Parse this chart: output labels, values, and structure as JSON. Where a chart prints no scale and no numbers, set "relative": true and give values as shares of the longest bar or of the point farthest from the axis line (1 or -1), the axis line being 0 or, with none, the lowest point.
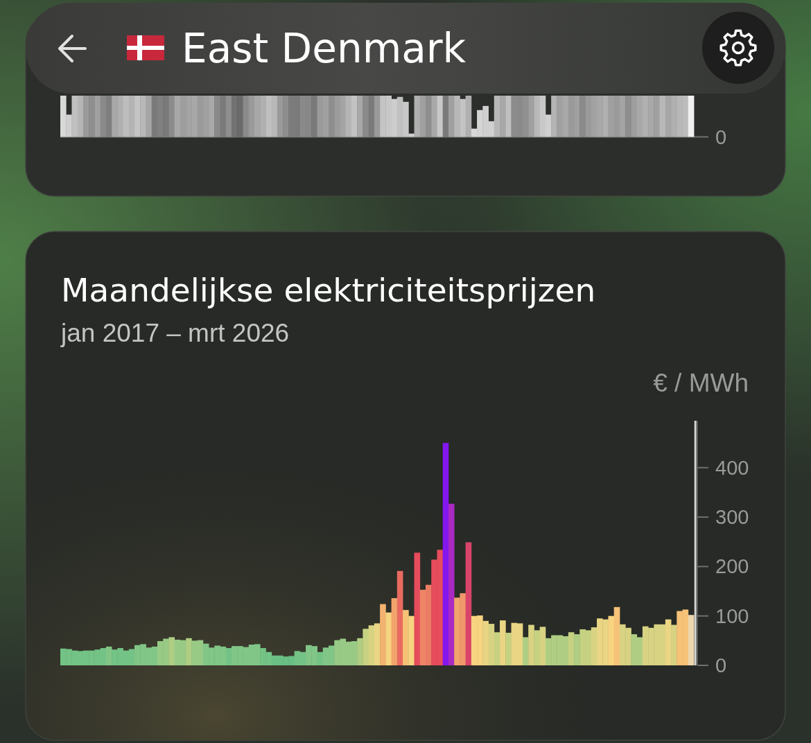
{
  "chart_data": [
    {
      "type": "bar",
      "relative": true,
      "annotations": [
        "East Denmark",
        "0"
      ],
      "categories": [
        null,
        null,
        null,
        null,
        null,
        null,
        null,
        null,
        null,
        null,
        null,
        null,
        null,
        null,
        null,
        null,
        null,
        null,
        null,
        null,
        null,
        null,
        null,
        null,
        null,
        null,
        null,
        null,
        null,
        null,
        null,
        null,
        null,
        null,
        null,
        null,
        null,
        null,
        null,
        null,
        null,
        null,
        null,
        null,
        null,
        null,
        null,
        null,
        null,
        null,
        null,
        null,
        null,
        null,
        null,
        null,
        null,
        null,
        null,
        null,
        null,
        null,
        null,
        null,
        null,
        null,
        null,
        null,
        null,
        null,
        null,
        null,
        null,
        null,
        null,
        null,
        null,
        null,
        null,
        null,
        null,
        null,
        null,
        null,
        null,
        null,
        null,
        null,
        null,
        null,
        null,
        null,
        null,
        null,
        null,
        null,
        null,
        null,
        null,
        null,
        null,
        null,
        null,
        null,
        null,
        null,
        null,
        null,
        null,
        null,
        null
      ],
      "values": [
        1,
        0.54,
        1,
        1,
        1,
        1,
        1,
        1,
        1,
        1,
        1,
        1,
        1,
        1,
        1,
        1,
        1,
        1,
        1,
        1,
        1,
        1,
        1,
        1,
        1,
        1,
        1,
        1,
        1,
        1,
        1,
        1,
        1,
        1,
        1,
        1,
        1,
        1,
        1,
        1,
        1,
        1,
        1,
        1,
        1,
        1,
        1,
        1,
        1,
        1,
        1,
        1,
        1,
        1,
        1,
        1,
        1,
        1,
        0.92,
        0.97,
        0.85,
        0.08,
        1,
        1,
        1,
        1,
        1,
        1,
        1,
        1,
        0.92,
        1,
        0.2,
        0.65,
        0.75,
        0.38,
        1,
        1,
        1,
        1,
        1,
        1,
        1,
        1,
        1,
        0.54,
        1,
        1,
        1,
        1,
        1,
        1,
        1,
        1,
        1,
        1,
        1,
        1,
        1,
        1,
        1,
        1,
        1,
        1,
        1,
        1,
        1,
        1,
        1,
        1,
        1
      ],
      "colors": [
        "#d8d8d8",
        "#cfcfcf",
        "#c0c0c0",
        "#b5b5b5",
        "#9a9a9a",
        "#8f8f8f",
        "#a0a0a0",
        "#8a8a8a",
        "#7e7e7e",
        "#a8a8a8",
        "#b0b0b0",
        "#bdbdbd",
        "#b4b4b4",
        "#c4c4c4",
        "#b8b8b8",
        "#a5a5a5",
        "#7a7a7a",
        "#808080",
        "#7a7a7a",
        "#8c8c8c",
        "#a8a8a8",
        "#9e9e9e",
        "#a4a4a4",
        "#a8a8a8",
        "#9a9a9a",
        "#a0a0a0",
        "#a9a9a9",
        "#8a8a8a",
        "#7a7a7a",
        "#8e8e8e",
        "#727272",
        "#6a6a6a",
        "#8a8a8a",
        "#9a9a9a",
        "#a8a8a8",
        "#b0b0b0",
        "#c0c0c0",
        "#b8b8b8",
        "#9a9a9a",
        "#8e8e8e",
        "#7c7c7c",
        "#7a7a7a",
        "#8a8a8a",
        "#888888",
        "#7a7a7a",
        "#9a9a9a",
        "#a0a0a0",
        "#8e8e8e",
        "#9c9c9c",
        "#a5a5a5",
        "#b5b5b5",
        "#c2c2c2",
        "#a8a8a8",
        "#8a8a8a",
        "#7a7a7a",
        "#9a9a9a",
        "#c4c4c4",
        "#c8c8c8",
        "#cdcdcd",
        "#c0c0c0",
        "#c8c8c8",
        "#d0d0d0",
        "#b0b0b0",
        "#a0a0a0",
        "#8e8e8e",
        "#a8a8a8",
        "#c8c8c8",
        "#7a7a7a",
        "#a0a0a0",
        "#b8b8b8",
        "#c4c4c4",
        "#b0b0b0",
        "#d8d8d8",
        "#d4d4d4",
        "#cfcfcf",
        "#d0d0d0",
        "#b8b8b8",
        "#a8a8a8",
        "#c0c0c0",
        "#8c8c8c",
        "#8a8a8a",
        "#909090",
        "#a0a0a0",
        "#b8b8b8",
        "#c8c8c8",
        "#d0d0d0",
        "#b4b4b4",
        "#a0a0a0",
        "#a8a8a8",
        "#9a9a9a",
        "#a0a0a0",
        "#8a8a8a",
        "#9a9a9a",
        "#a2a2a2",
        "#a8a8a8",
        "#b0b0b0",
        "#a0a0a0",
        "#9a9a9a",
        "#a4a4a4",
        "#8e8e8e",
        "#9e9e9e",
        "#a8a8a8",
        "#b0b0b0",
        "#a8a8a8",
        "#a0a0a0",
        "#b8b8b8",
        "#a6a6a6",
        "#b0b0b0",
        "#b8b8b8",
        "#bcbcbc",
        "#f0f0f0"
      ]
    },
    {
      "type": "bar",
      "title": "Maandelijkse elektriciteitsprijzen",
      "subtitle": "jan 2017 – mrt 2026",
      "ylabel": "€ / MWh",
      "tick_labels": "y",
      "ylim": [
        0,
        495
      ],
      "yticks": [
        0,
        100,
        200,
        300,
        400
      ],
      "categories": [
        null,
        null,
        null,
        null,
        null,
        null,
        null,
        null,
        null,
        null,
        null,
        null,
        null,
        null,
        null,
        null,
        null,
        null,
        null,
        null,
        null,
        null,
        null,
        null,
        null,
        null,
        null,
        null,
        null,
        null,
        null,
        null,
        null,
        null,
        null,
        null,
        null,
        null,
        null,
        null,
        null,
        null,
        null,
        null,
        null,
        null,
        null,
        null,
        null,
        null,
        null,
        null,
        null,
        null,
        null,
        null,
        null,
        null,
        null,
        null,
        null,
        null,
        null,
        null,
        null,
        null,
        null,
        null,
        null,
        null,
        null,
        null,
        null,
        null,
        null,
        null,
        null,
        null,
        null,
        null,
        null,
        null,
        null,
        null,
        null,
        null,
        null,
        null,
        null,
        null,
        null,
        null,
        null,
        null,
        null,
        null,
        null,
        null,
        null,
        null,
        null,
        null,
        null,
        null,
        null,
        null,
        null,
        null,
        null,
        null,
        null
      ],
      "values": [
        34,
        33,
        30,
        29,
        30,
        30,
        32,
        35,
        38,
        32,
        35,
        30,
        33,
        41,
        43,
        36,
        38,
        49,
        54,
        57,
        52,
        51,
        55,
        50,
        51,
        44,
        36,
        40,
        38,
        35,
        39,
        39,
        37,
        42,
        43,
        35,
        27,
        20,
        20,
        18,
        19,
        29,
        27,
        41,
        39,
        27,
        36,
        40,
        51,
        54,
        48,
        49,
        55,
        74,
        81,
        85,
        124,
        107,
        136,
        191,
        112,
        100,
        228,
        153,
        163,
        214,
        234,
        450,
        327,
        137,
        146,
        249,
        100,
        101,
        90,
        84,
        67,
        91,
        66,
        86,
        85,
        57,
        82,
        71,
        78,
        55,
        61,
        61,
        59,
        67,
        63,
        73,
        71,
        77,
        95,
        93,
        100,
        118,
        83,
        76,
        63,
        57,
        79,
        76,
        83,
        83,
        93,
        82,
        110,
        113,
        102
      ],
      "colors": [
        "#74c386",
        "#74c386",
        "#74c386",
        "#74c386",
        "#74c386",
        "#74c386",
        "#74c386",
        "#74c386",
        "#82c687",
        "#74c386",
        "#74c386",
        "#74c386",
        "#74c386",
        "#82c687",
        "#82c687",
        "#82c687",
        "#82c687",
        "#98ca86",
        "#98ca86",
        "#b0ce83",
        "#98ca86",
        "#98ca86",
        "#b0ce83",
        "#98ca86",
        "#98ca86",
        "#82c687",
        "#82c687",
        "#82c687",
        "#82c687",
        "#74c386",
        "#82c687",
        "#82c687",
        "#82c687",
        "#82c687",
        "#82c687",
        "#74c386",
        "#74c386",
        "#69bf84",
        "#69bf84",
        "#69bf84",
        "#69bf84",
        "#74c386",
        "#74c386",
        "#82c687",
        "#82c687",
        "#74c386",
        "#82c687",
        "#82c687",
        "#98ca86",
        "#98ca86",
        "#98ca86",
        "#98ca86",
        "#b0ce83",
        "#c6d181",
        "#d8d383",
        "#e9d583",
        "#f3b270",
        "#f7d480",
        "#f2a46d",
        "#e96b60",
        "#f6c277",
        "#f7d480",
        "#e64c5c",
        "#ee8566",
        "#ec7d64",
        "#e64c5c",
        "#e64c5c",
        "#8416ee",
        "#a92ac2",
        "#f2a46d",
        "#f0986b",
        "#d9446a",
        "#f7d480",
        "#f7d480",
        "#e9d583",
        "#d8d383",
        "#c6d181",
        "#e9d583",
        "#c6d181",
        "#e9d583",
        "#e9d583",
        "#b0ce83",
        "#d8d383",
        "#c6d181",
        "#d8d383",
        "#b0ce83",
        "#b0ce83",
        "#b0ce83",
        "#b0ce83",
        "#c6d181",
        "#b0ce83",
        "#c6d181",
        "#c6d181",
        "#d8d383",
        "#e9d583",
        "#e9d583",
        "#f7d480",
        "#f6c277",
        "#d8d383",
        "#d8d383",
        "#b0ce83",
        "#b0ce83",
        "#d8d383",
        "#d8d383",
        "#d8d383",
        "#d8d383",
        "#e9d583",
        "#d8d383",
        "#f6c277",
        "#f6c277",
        "#ecd6ae"
      ]
    }
  ]
}
